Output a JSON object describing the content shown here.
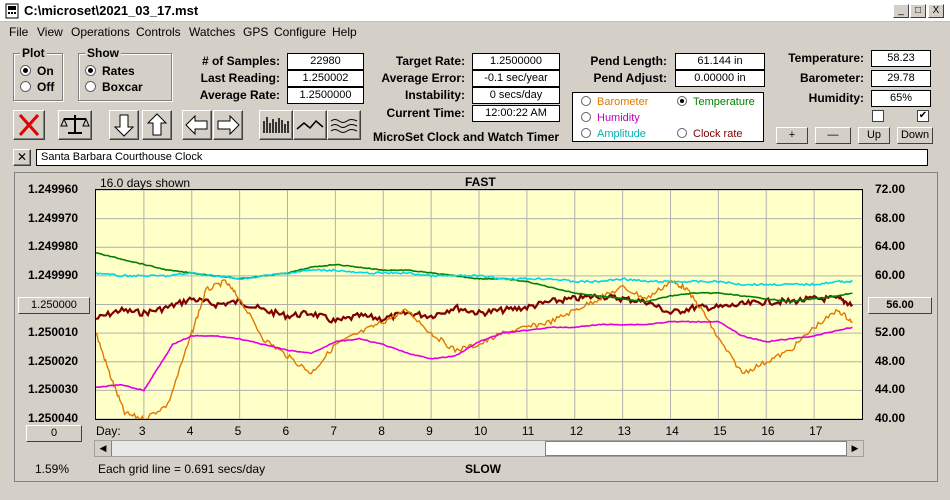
{
  "window": {
    "title": "C:\\microset\\2021_03_17.mst",
    "minimize": "_",
    "maximize": "□",
    "close": "X"
  },
  "menu": [
    "File",
    "View",
    "Operations",
    "Controls",
    "Watches",
    "GPS",
    "Configure",
    "Help"
  ],
  "plot_group": {
    "title": "Plot",
    "options": [
      "On",
      "Off"
    ],
    "selected": "On"
  },
  "show_group": {
    "title": "Show",
    "options": [
      "Rates",
      "Boxcar"
    ],
    "selected": "Rates"
  },
  "stats": {
    "samples_label": "# of Samples:",
    "samples": "22980",
    "last_reading_label": "Last Reading:",
    "last_reading": "1.250002",
    "average_rate_label": "Average Rate:",
    "average_rate": "1.2500000",
    "target_rate_label": "Target Rate:",
    "target_rate": "1.2500000",
    "average_error_label": "Average Error:",
    "average_error": "-0.1 sec/year",
    "instability_label": "Instability:",
    "instability": "0 secs/day",
    "current_time_label": "Current Time:",
    "current_time": "12:00:22 AM",
    "pend_length_label": "Pend Length:",
    "pend_length": "61.144 in",
    "pend_adjust_label": "Pend Adjust:",
    "pend_adjust": "0.00000 in",
    "temperature_label": "Temperature:",
    "temperature": "58.23",
    "barometer_label": "Barometer:",
    "barometer": "29.78",
    "humidity_label": "Humidity:",
    "humidity": "65%"
  },
  "app_caption": "MicroSet Clock and Watch Timer",
  "channels": [
    {
      "name": "Barometer",
      "color": "#e07800",
      "selected": false
    },
    {
      "name": "Temperature",
      "color": "#008000",
      "selected": true
    },
    {
      "name": "Humidity",
      "color": "#c000c0",
      "selected": false
    },
    {
      "name": "Clock rate",
      "color": "#800000",
      "selected": false
    },
    {
      "name": "Amplitude",
      "color": "#00b0b0",
      "selected": false
    }
  ],
  "aux_buttons": [
    "+",
    "—",
    "Up",
    "Down"
  ],
  "checks": [
    false,
    true
  ],
  "clock_name": "Santa Barbara Courthouse Clock",
  "chart_data": {
    "type": "line",
    "top_label": "FAST",
    "bottom_label": "SLOW",
    "days_shown": "16.0 days shown",
    "grid_note": "Each grid line = 0.691 secs/day",
    "percent": "1.59%",
    "left_ticks": [
      "1.249960",
      "1.249970",
      "1.249980",
      "1.249990",
      "1.250000",
      "1.250010",
      "1.250020",
      "1.250030",
      "1.250040"
    ],
    "right_ticks": [
      "72.00",
      "68.00",
      "64.00",
      "60.00",
      "56.00",
      "52.00",
      "48.00",
      "44.00",
      "40.00"
    ],
    "left_value_box": "1.250000",
    "right_value_box": "56.00",
    "left_bottom_box": "0",
    "x_label": "Day:",
    "days": [
      "3",
      "4",
      "5",
      "6",
      "7",
      "8",
      "9",
      "10",
      "11",
      "12",
      "13",
      "14",
      "15",
      "16",
      "17"
    ],
    "ylim_left": [
      1.25004,
      1.24996
    ],
    "ylim_right": [
      40,
      72
    ],
    "x_range": [
      2.0,
      18.0
    ],
    "series": [
      {
        "name": "Clock rate",
        "color": "#800000",
        "x": [
          2.0,
          2.5,
          3.0,
          3.5,
          4.0,
          4.5,
          5.0,
          5.5,
          6.0,
          6.5,
          7.0,
          7.5,
          8.0,
          8.5,
          9.0,
          9.5,
          10.0,
          10.5,
          11.0,
          11.5,
          12.0,
          12.5,
          13.0,
          13.5,
          14.0,
          14.5,
          15.0,
          15.5,
          16.0,
          16.5,
          17.0,
          17.5,
          17.8
        ],
        "y": [
          1.250005,
          1.250002,
          1.250003,
          1.250001,
          1.249998,
          1.25,
          1.249999,
          1.250002,
          1.250004,
          1.250003,
          1.250006,
          1.250004,
          1.250005,
          1.250003,
          1.250004,
          1.250001,
          1.250003,
          1.250002,
          1.250001,
          1.249999,
          1.249998,
          1.249997,
          1.249998,
          1.249999,
          1.250003,
          1.250001,
          1.250001,
          1.25,
          1.249999,
          1.249999,
          1.249998,
          1.249998,
          1.25
        ]
      },
      {
        "name": "Barometer",
        "color": "#e07800",
        "x": [
          2.0,
          2.3,
          2.6,
          3.0,
          3.5,
          4.0,
          4.3,
          4.7,
          5.0,
          5.5,
          6.0,
          6.5,
          7.0,
          7.5,
          8.0,
          8.5,
          9.0,
          9.5,
          10.0,
          10.5,
          11.0,
          11.5,
          12.0,
          12.5,
          13.0,
          13.5,
          14.0,
          14.3,
          14.7,
          15.0,
          15.5,
          16.0,
          16.5,
          17.0,
          17.5,
          17.8
        ],
        "y": [
          1.25001,
          1.250025,
          1.250038,
          1.25004,
          1.250035,
          1.25001,
          1.249995,
          1.249992,
          1.249998,
          1.250012,
          1.250018,
          1.250024,
          1.250014,
          1.25001,
          1.250006,
          1.250002,
          1.25001,
          1.250016,
          1.250014,
          1.25001,
          1.250008,
          1.250006,
          1.250002,
          1.249998,
          1.249994,
          1.249998,
          1.249992,
          1.249994,
          1.250003,
          1.250012,
          1.250024,
          1.25002,
          1.250016,
          1.250008,
          1.250002,
          1.250006
        ]
      },
      {
        "name": "Temperature",
        "color": "#008000",
        "x": [
          2.0,
          2.5,
          3.0,
          3.5,
          4.0,
          4.5,
          5.0,
          5.5,
          6.0,
          6.5,
          7.0,
          7.5,
          8.0,
          8.5,
          9.0,
          9.5,
          10.0,
          10.5,
          11.0,
          11.5,
          12.0,
          12.5,
          13.0,
          13.5,
          14.0,
          14.5,
          15.0,
          15.5,
          16.0,
          16.5,
          17.0,
          17.5,
          17.8
        ],
        "y": [
          1.249982,
          1.249984,
          1.249986,
          1.249988,
          1.249989,
          1.24999,
          1.249991,
          1.24999,
          1.249989,
          1.249987,
          1.249986,
          1.249987,
          1.249988,
          1.249988,
          1.249989,
          1.24999,
          1.249991,
          1.249991,
          1.249992,
          1.249994,
          1.249996,
          1.249997,
          1.249998,
          1.249999,
          1.249997,
          1.249996,
          1.249996,
          1.249997,
          1.249998,
          1.249999,
          1.249998,
          1.249997,
          1.249996
        ]
      },
      {
        "name": "Amplitude",
        "color": "#00d8e8",
        "x": [
          2.0,
          2.5,
          3.0,
          3.5,
          4.0,
          4.5,
          5.0,
          5.5,
          6.0,
          6.5,
          7.0,
          7.5,
          8.0,
          8.5,
          9.0,
          9.5,
          10.0,
          10.5,
          11.0,
          11.5,
          12.0,
          12.5,
          13.0,
          13.5,
          14.0,
          14.5,
          15.0,
          15.5,
          16.0,
          16.5,
          17.0,
          17.5,
          17.8
        ],
        "y": [
          1.249989,
          1.24999,
          1.24999,
          1.24999,
          1.249989,
          1.24999,
          1.249991,
          1.24999,
          1.249989,
          1.249988,
          1.249988,
          1.249989,
          1.249989,
          1.249989,
          1.24999,
          1.24999,
          1.24999,
          1.249991,
          1.249991,
          1.249991,
          1.249992,
          1.249992,
          1.249991,
          1.249992,
          1.249992,
          1.249992,
          1.249992,
          1.249993,
          1.249993,
          1.249993,
          1.249993,
          1.249992,
          1.249992
        ]
      },
      {
        "name": "Humidity",
        "color": "#e000e0",
        "x": [
          2.0,
          2.5,
          3.0,
          3.3,
          3.6,
          4.0,
          4.5,
          5.0,
          5.5,
          6.0,
          6.5,
          7.0,
          7.5,
          8.0,
          8.5,
          9.0,
          9.5,
          10.0,
          10.5,
          11.0,
          11.5,
          12.0,
          12.5,
          13.0,
          13.5,
          14.0,
          14.5,
          15.0,
          15.5,
          16.0,
          16.5,
          17.0,
          17.5,
          17.8
        ],
        "y": [
          1.250029,
          1.250028,
          1.25003,
          1.250022,
          1.250014,
          1.250011,
          1.250011,
          1.250012,
          1.250014,
          1.250016,
          1.250017,
          1.250013,
          1.250012,
          1.250014,
          1.250017,
          1.250019,
          1.250018,
          1.250013,
          1.25001,
          1.250009,
          1.250008,
          1.250008,
          1.250007,
          1.250007,
          1.250007,
          1.250006,
          1.250006,
          1.250006,
          1.250011,
          1.250013,
          1.250012,
          1.250011,
          1.250009,
          1.250008
        ]
      }
    ]
  }
}
